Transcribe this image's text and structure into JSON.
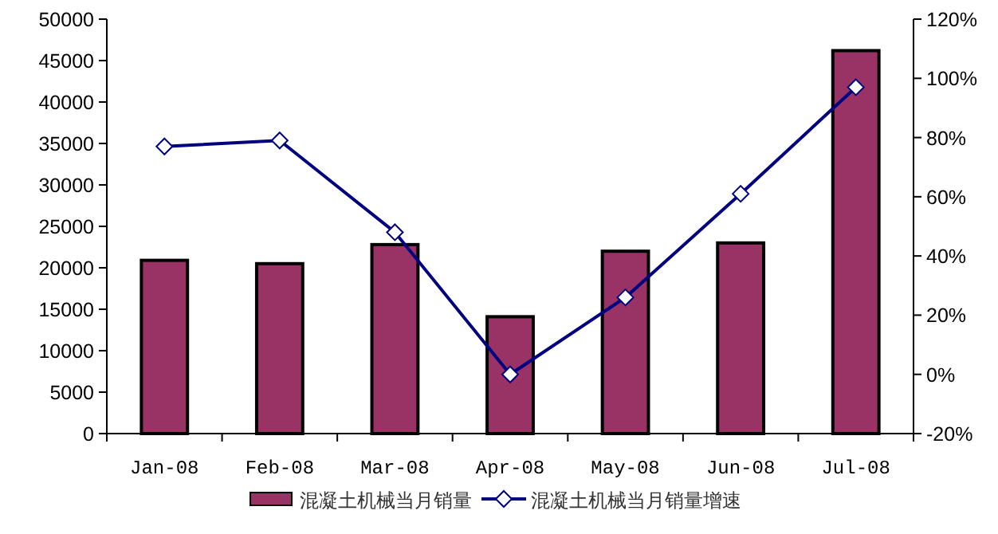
{
  "chart_data": {
    "type": "bar",
    "categories": [
      "Jan-08",
      "Feb-08",
      "Mar-08",
      "Apr-08",
      "May-08",
      "Jun-08",
      "Jul-08"
    ],
    "series": [
      {
        "name": "混凝土机械当月销量",
        "color": "#993366",
        "values": [
          20900,
          20500,
          22800,
          14100,
          22000,
          23000,
          46200
        ]
      },
      {
        "name": "混凝土机械当月销量增速",
        "type": "line",
        "axis": "y2",
        "color": "#000080",
        "marker": "diamond",
        "values": [
          77,
          79,
          48,
          0,
          26,
          61,
          97
        ]
      }
    ],
    "ylim": [
      0,
      50000
    ],
    "yticks": [
      0,
      5000,
      10000,
      15000,
      20000,
      25000,
      30000,
      35000,
      40000,
      45000,
      50000
    ],
    "y2lim": [
      -20,
      120
    ],
    "y2ticks": [
      {
        "value": -20,
        "label": "-20%"
      },
      {
        "value": 0,
        "label": "0%"
      },
      {
        "value": 20,
        "label": "20%"
      },
      {
        "value": 40,
        "label": "40%"
      },
      {
        "value": 60,
        "label": "60%"
      },
      {
        "value": 80,
        "label": "80%"
      },
      {
        "value": 100,
        "label": "100%"
      },
      {
        "value": 120,
        "label": "120%"
      }
    ],
    "grid": false,
    "legend": "bottom"
  }
}
